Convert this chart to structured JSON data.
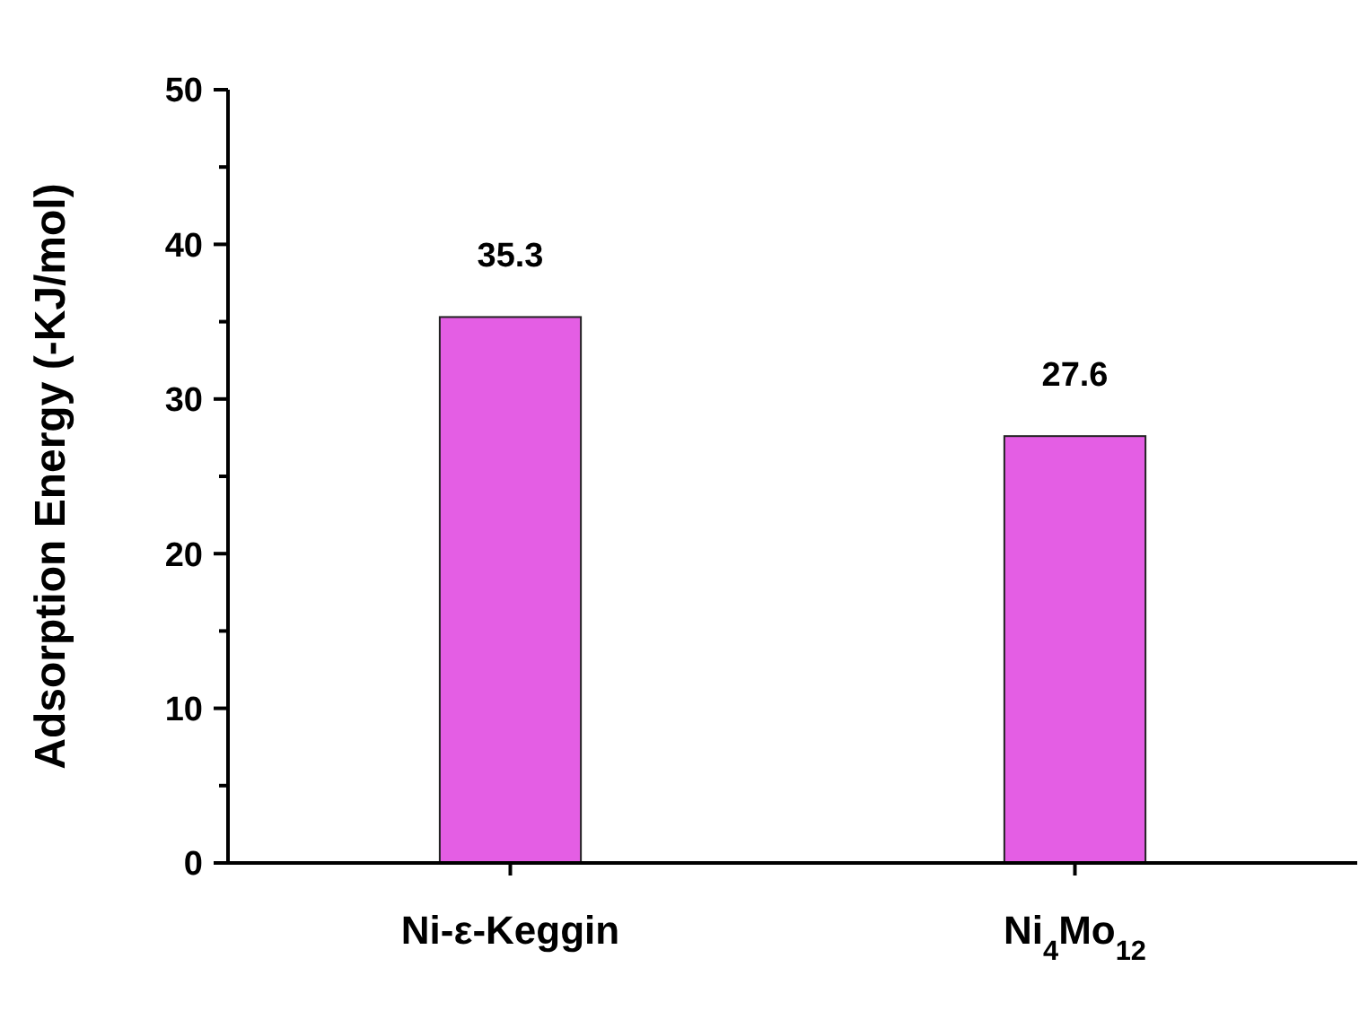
{
  "chart_data": {
    "type": "bar",
    "ylabel": "Adsorption Energy (-KJ/mol)",
    "categories": [
      "Ni-ε-Keggin",
      "Ni$_{4}$Mo$_{12}$"
    ],
    "values": [
      35.3,
      27.6
    ],
    "color": "#e45ee4",
    "ylim": [
      0,
      50
    ],
    "yticks": [
      0,
      {
        "value": 5,
        "label": null
      },
      10,
      {
        "value": 15,
        "label": null
      },
      20,
      {
        "value": 25,
        "label": null
      },
      30,
      {
        "value": 35,
        "label": null
      },
      40,
      {
        "value": 45,
        "label": null
      },
      50
    ],
    "data_labels": true,
    "grid": false
  }
}
